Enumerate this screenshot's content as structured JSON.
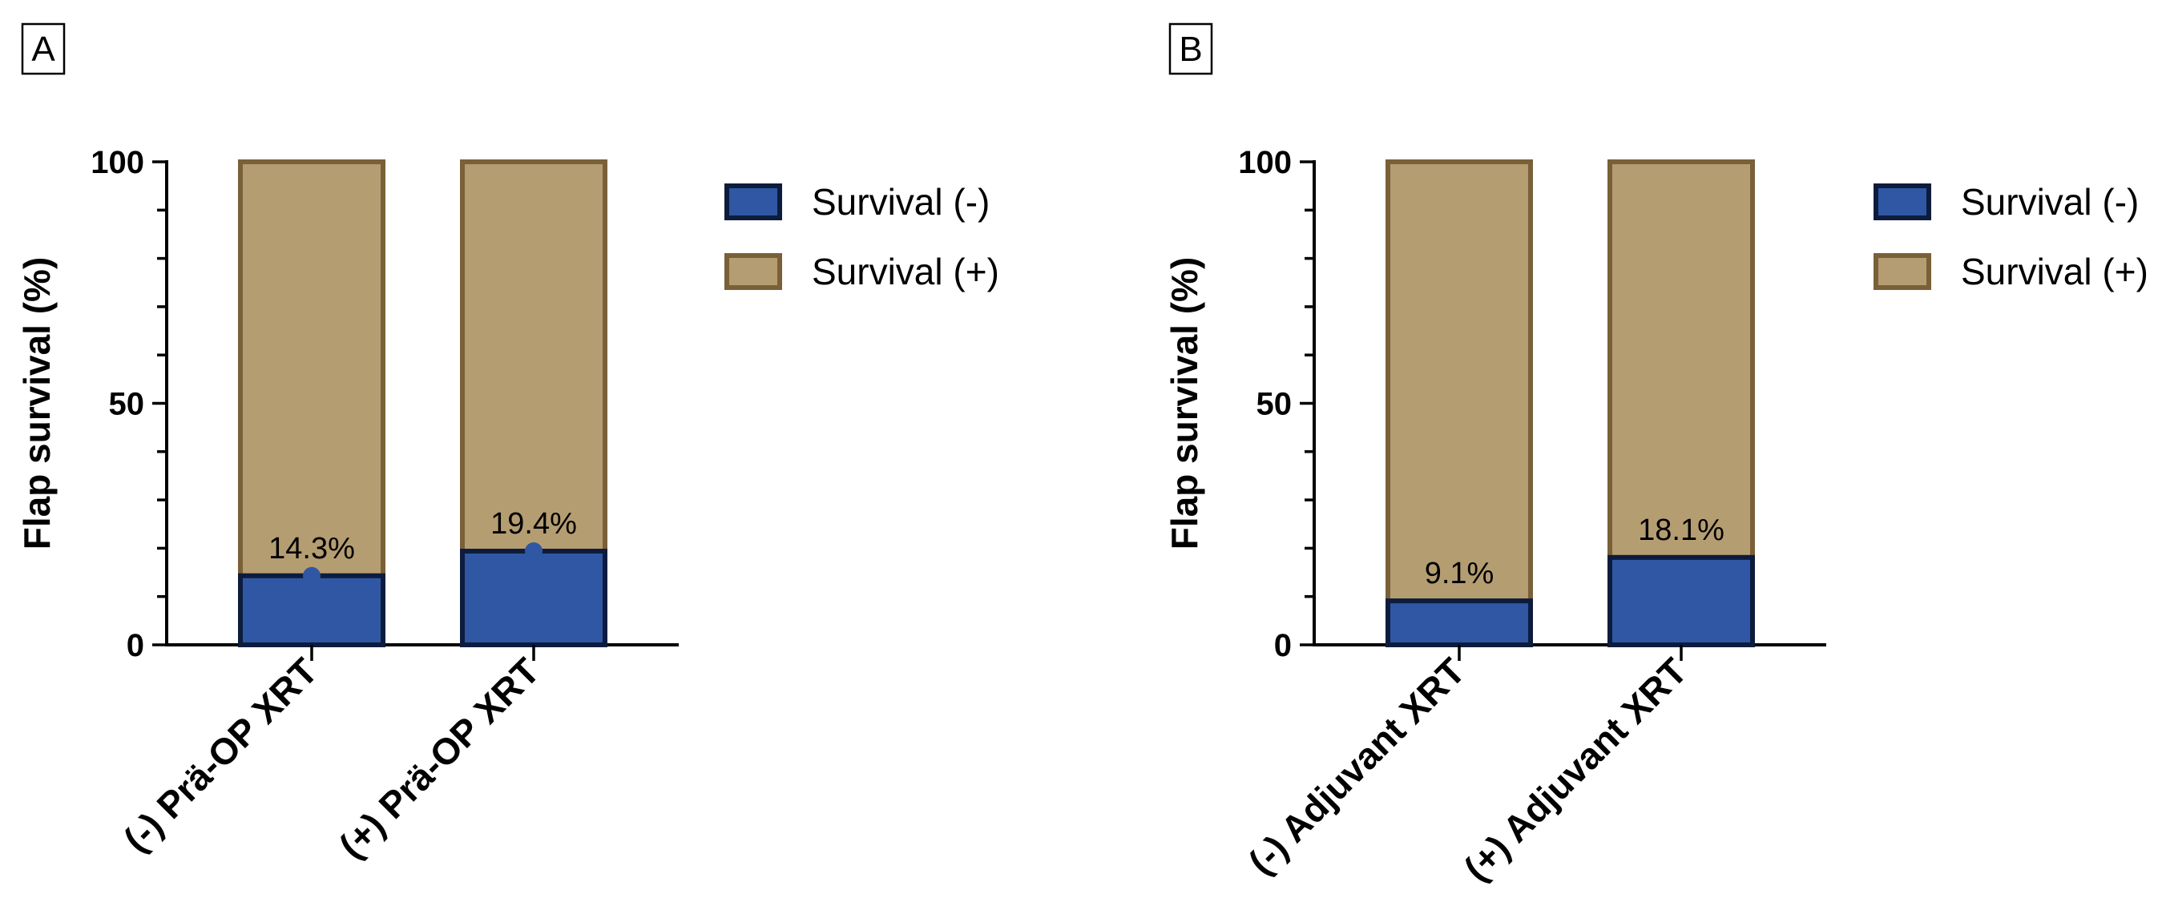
{
  "colors": {
    "survival_neg_fill": "#2f57a3",
    "survival_neg_stroke": "#0d1c3d",
    "survival_pos_fill": "#b59d72",
    "survival_pos_stroke": "#7a6038",
    "marker": "#2f57a3",
    "axis": "#000000"
  },
  "chart_data": [
    {
      "type": "bar",
      "stacked": true,
      "panel_label": "A",
      "ylabel": "Flap survival (%)",
      "ylim": [
        0,
        100
      ],
      "yticks": [
        0,
        50,
        100
      ],
      "categories": [
        "(-) Prä-OP XRT",
        "(+) Prä-OP XRT"
      ],
      "series": [
        {
          "name": "Survival (-)",
          "values": [
            14.3,
            19.4
          ]
        },
        {
          "name": "Survival (+)",
          "values": [
            85.7,
            80.6
          ]
        }
      ],
      "data_labels": [
        "14.3%",
        "19.4%"
      ],
      "markers": true,
      "legend": {
        "position": "right",
        "entries": [
          "Survival (-)",
          "Survival (+)"
        ]
      }
    },
    {
      "type": "bar",
      "stacked": true,
      "panel_label": "B",
      "ylabel": "Flap survival (%)",
      "ylim": [
        0,
        100
      ],
      "yticks": [
        0,
        50,
        100
      ],
      "categories": [
        "(-) Adjuvant XRT",
        "(+) Adjuvant XRT"
      ],
      "series": [
        {
          "name": "Survival (-)",
          "values": [
            9.1,
            18.1
          ]
        },
        {
          "name": "Survival (+)",
          "values": [
            90.9,
            81.9
          ]
        }
      ],
      "data_labels": [
        "9.1%",
        "18.1%"
      ],
      "markers": false,
      "legend": {
        "position": "right",
        "entries": [
          "Survival (-)",
          "Survival (+)"
        ]
      }
    }
  ]
}
